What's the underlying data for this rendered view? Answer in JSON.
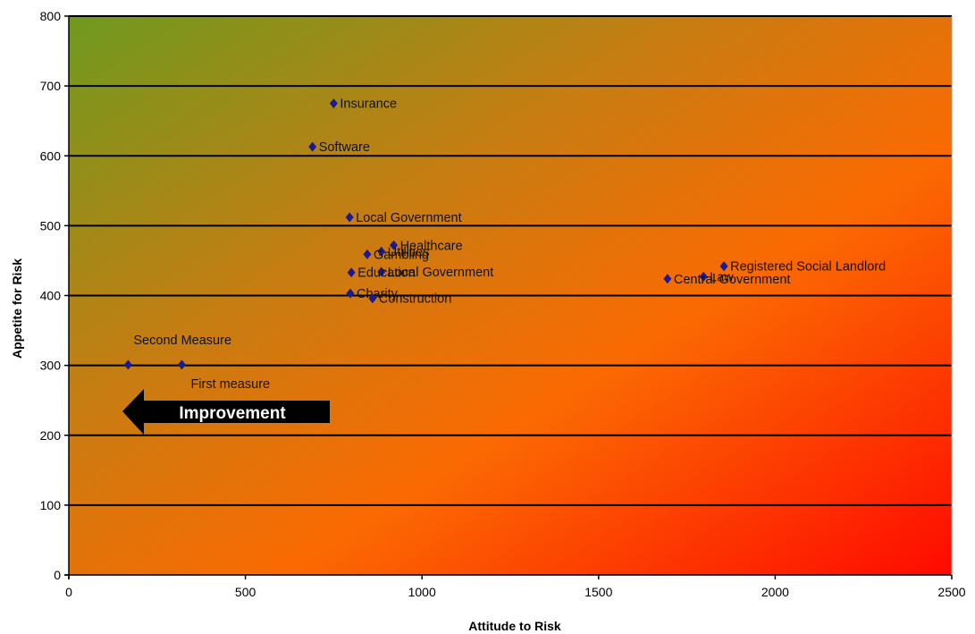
{
  "chart_data": {
    "type": "scatter",
    "title": "",
    "xlabel": "Attitude to Risk",
    "ylabel": "Appetite for Risk",
    "xlim": [
      0,
      2500
    ],
    "ylim": [
      0,
      800
    ],
    "x_ticks": [
      0,
      500,
      1000,
      1500,
      2000,
      2500
    ],
    "y_ticks": [
      0,
      100,
      200,
      300,
      400,
      500,
      600,
      700,
      800
    ],
    "grid": "horizontal",
    "legend": "none",
    "background": "gradient green (top-left) to orange to red (bottom-right)",
    "marker": {
      "shape": "diamond",
      "color": "#1b1b8f"
    },
    "points": [
      {
        "label": "Insurance",
        "x": 750,
        "y": 675
      },
      {
        "label": "Software",
        "x": 690,
        "y": 613
      },
      {
        "label": "Local Government",
        "x": 795,
        "y": 512
      },
      {
        "label": "Healthcare",
        "x": 920,
        "y": 472
      },
      {
        "label": "Utilities",
        "x": 885,
        "y": 463
      },
      {
        "label": "Gambling",
        "x": 845,
        "y": 459
      },
      {
        "label": "Local Government",
        "x": 885,
        "y": 434
      },
      {
        "label": "Education",
        "x": 800,
        "y": 433
      },
      {
        "label": "Charity",
        "x": 797,
        "y": 403
      },
      {
        "label": "Construction",
        "x": 860,
        "y": 396
      },
      {
        "label": "Registered Social Landlord",
        "x": 1855,
        "y": 442
      },
      {
        "label": "Law",
        "x": 1797,
        "y": 427
      },
      {
        "label": "Central Government",
        "x": 1695,
        "y": 424
      },
      {
        "label": "Second Measure",
        "x": 168,
        "y": 301
      },
      {
        "label": "First measure",
        "x": 320,
        "y": 301
      }
    ],
    "annotation": {
      "text": "Improvement",
      "direction": "left"
    }
  },
  "colors": {
    "gradient_start": "#6f9a1f",
    "gradient_mid": "#fb6a02",
    "gradient_end": "#ff0a00",
    "marker": "#1b1b8f",
    "gridline": "#000000"
  }
}
